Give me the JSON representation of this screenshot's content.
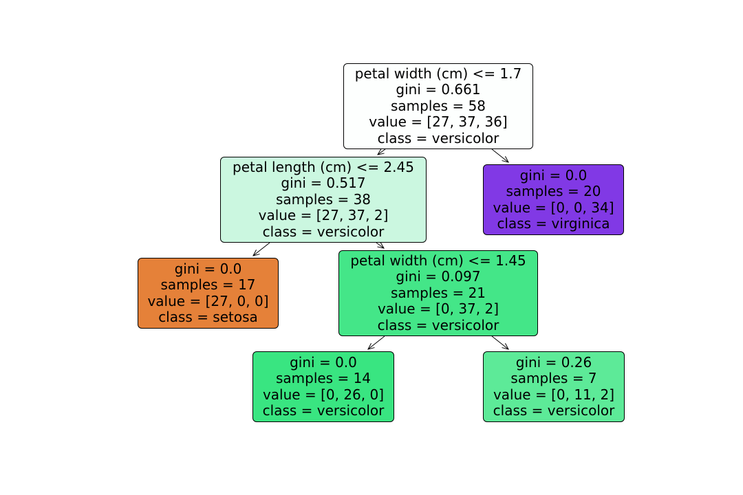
{
  "tree": {
    "nodes": [
      {
        "id": "node-0",
        "split": "petal width (cm) <= 1.7",
        "gini": "gini = 0.661",
        "samples": "samples = 58",
        "value": "value = [27, 37, 36]",
        "class": "class = versicolor",
        "fill": "#fdfffe"
      },
      {
        "id": "node-1",
        "split": "petal length (cm) <= 2.45",
        "gini": "gini = 0.517",
        "samples": "samples = 38",
        "value": "value = [27, 37, 2]",
        "class": "class = versicolor",
        "fill": "#cbf7e0"
      },
      {
        "id": "node-2",
        "gini": "gini = 0.0",
        "samples": "samples = 20",
        "value": "value = [0, 0, 34]",
        "class": "class = virginica",
        "fill": "#8139e5"
      },
      {
        "id": "node-3",
        "gini": "gini = 0.0",
        "samples": "samples = 17",
        "value": "value = [27, 0, 0]",
        "class": "class = setosa",
        "fill": "#e58139"
      },
      {
        "id": "node-4",
        "split": "petal width (cm) <= 1.45",
        "gini": "gini = 0.097",
        "samples": "samples = 21",
        "value": "value = [0, 37, 2]",
        "class": "class = versicolor",
        "fill": "#44e688"
      },
      {
        "id": "node-5",
        "gini": "gini = 0.0",
        "samples": "samples = 14",
        "value": "value = [0, 26, 0]",
        "class": "class = versicolor",
        "fill": "#39e581"
      },
      {
        "id": "node-6",
        "gini": "gini = 0.26",
        "samples": "samples = 7",
        "value": "value = [0, 11, 2]",
        "class": "class = versicolor",
        "fill": "#5dea98"
      }
    ],
    "edges": [
      {
        "from": "node-0",
        "to": "node-1"
      },
      {
        "from": "node-0",
        "to": "node-2"
      },
      {
        "from": "node-1",
        "to": "node-3"
      },
      {
        "from": "node-1",
        "to": "node-4"
      },
      {
        "from": "node-4",
        "to": "node-5"
      },
      {
        "from": "node-4",
        "to": "node-6"
      }
    ]
  }
}
